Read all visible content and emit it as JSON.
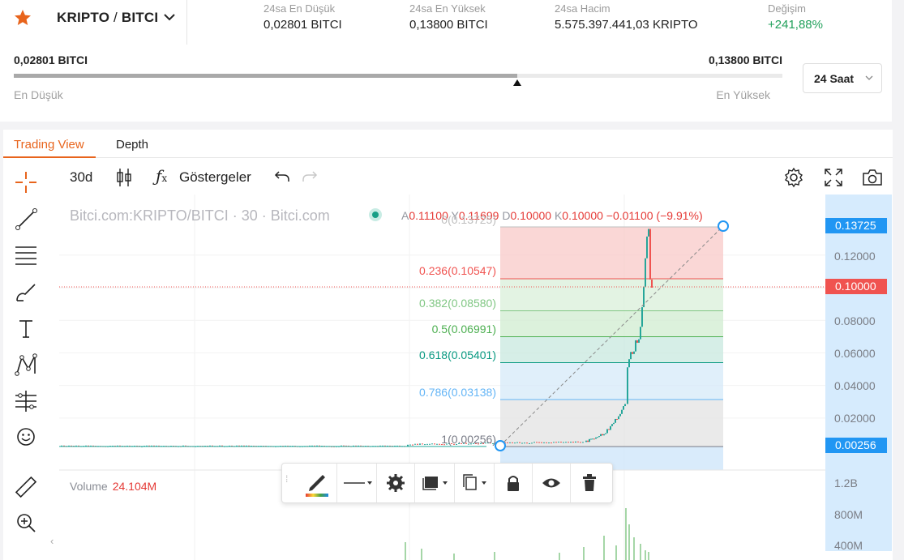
{
  "header": {
    "pair_base": "KRIPTO",
    "pair_sep": " / ",
    "pair_quote": "BITCI",
    "stats": [
      {
        "label": "24sa En Düşük",
        "value": "0,02801 BITCI"
      },
      {
        "label": "24sa En Yüksek",
        "value": "0,13800 BITCI"
      },
      {
        "label": "24sa Hacim",
        "value": "5.575.397.441,03 KRIPTO"
      },
      {
        "label": "Değişim",
        "value": "+241,88%"
      }
    ]
  },
  "range": {
    "low_value": "0,02801 BITCI",
    "high_value": "0,13800 BITCI",
    "low_label": "En Düşük",
    "high_label": "En Yüksek",
    "fill_fraction": 0.655,
    "period": "24 Saat"
  },
  "tabs": [
    {
      "label": "Trading View",
      "active": true
    },
    {
      "label": "Depth",
      "active": false
    }
  ],
  "toolbar": {
    "interval": "30d",
    "indicators": "Göstergeler"
  },
  "legend": {
    "title": "Bitci.com:KRIPTO/BITCI · 30 · Bitci.com",
    "o_key": "A",
    "o_val": "0.11100",
    "h_key": "Y",
    "h_val": "0.11699",
    "l_key": "D",
    "l_val": "0.10000",
    "c_key": "K",
    "c_val": "0.10000",
    "change": "−0.01100 (−9.91%)"
  },
  "fib_levels": [
    {
      "label": "0(0.13725)",
      "color": "#bfbfbf"
    },
    {
      "label": "0.236(0.10547)",
      "color": "#f05350"
    },
    {
      "label": "0.382(0.08580)",
      "color": "#81c784"
    },
    {
      "label": "0.5(0.06991)",
      "color": "#4caf50"
    },
    {
      "label": "0.618(0.05401)",
      "color": "#089981"
    },
    {
      "label": "0.786(0.03138)",
      "color": "#64b5f6"
    },
    {
      "label": "1(0.00256)",
      "color": "#787b86"
    }
  ],
  "price_axis": {
    "ticks": [
      "0.12000",
      "0.08000",
      "0.06000",
      "0.04000",
      "0.02000"
    ],
    "tag_top": "0.13725",
    "tag_last": "0.10000",
    "tag_bottom": "0.00256",
    "colors": {
      "blue": "#2196f3",
      "red": "#f05350"
    }
  },
  "volume": {
    "label": "Volume",
    "value": "24.104M",
    "ticks": [
      "1.2B",
      "800M",
      "400M"
    ]
  },
  "colors": {
    "accent": "#e8641c",
    "up": "#26a69a",
    "down": "#ef5350"
  }
}
